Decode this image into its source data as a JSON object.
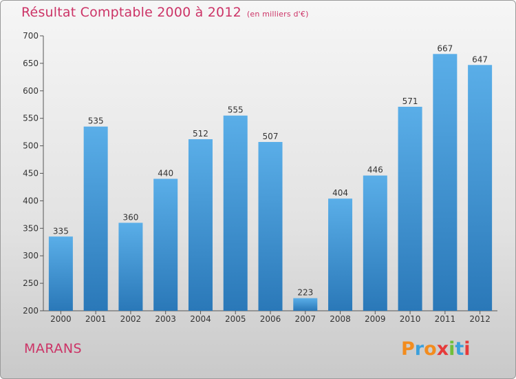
{
  "header": {
    "title": "Résultat Comptable 2000 à 2012",
    "subtitle": "(en milliers d'€)"
  },
  "commune": "MARANS",
  "logo": {
    "letters": [
      "P",
      "r",
      "o",
      "x",
      "i",
      "t",
      "i"
    ],
    "colors": [
      "#f28c1e",
      "#3ba0dc",
      "#f28c1e",
      "#e63a3a",
      "#6fbf3a",
      "#3ba0dc",
      "#e63a3a"
    ]
  },
  "colors": {
    "bar_top": "#5aaee8",
    "bar_bottom": "#2a78b8",
    "accent": "#cc3366"
  },
  "chart_data": {
    "type": "bar",
    "title": "Résultat Comptable 2000 à 2012",
    "subtitle": "(en milliers d'€)",
    "categories": [
      "2000",
      "2001",
      "2002",
      "2003",
      "2004",
      "2005",
      "2006",
      "2007",
      "2008",
      "2009",
      "2010",
      "2011",
      "2012"
    ],
    "values": [
      335,
      535,
      360,
      440,
      512,
      555,
      507,
      223,
      404,
      446,
      571,
      667,
      647
    ],
    "ylim": [
      200,
      700
    ],
    "yticks": [
      200,
      250,
      300,
      350,
      400,
      450,
      500,
      550,
      600,
      650,
      700
    ],
    "grid": false,
    "xlabel": "",
    "ylabel": ""
  }
}
